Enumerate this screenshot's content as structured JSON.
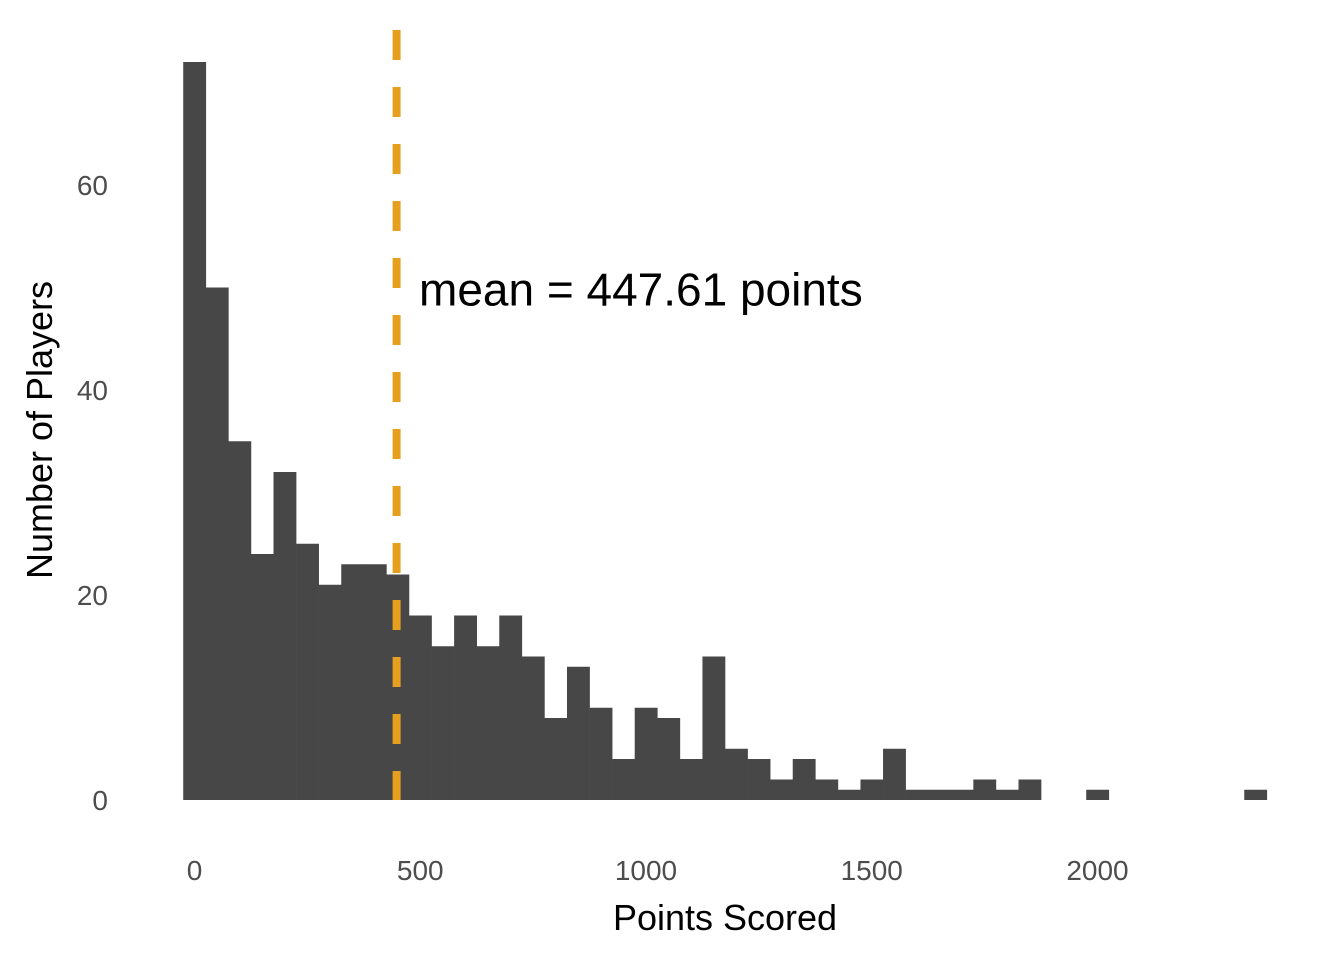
{
  "chart_data": {
    "type": "bar",
    "subtype": "histogram",
    "title": "",
    "xlabel": "Points Scored",
    "ylabel": "Number of Players",
    "bin_width": 50,
    "x": [
      0,
      50,
      100,
      150,
      200,
      250,
      300,
      350,
      400,
      450,
      500,
      550,
      600,
      650,
      700,
      750,
      800,
      850,
      900,
      950,
      1000,
      1050,
      1100,
      1150,
      1200,
      1250,
      1300,
      1350,
      1400,
      1450,
      1500,
      1550,
      1600,
      1650,
      1700,
      1750,
      1800,
      1850,
      1900,
      1950,
      2000,
      2050,
      2100,
      2150,
      2200,
      2250,
      2300,
      2350
    ],
    "values": [
      72,
      50,
      35,
      24,
      32,
      25,
      21,
      23,
      23,
      22,
      18,
      15,
      18,
      15,
      18,
      14,
      8,
      13,
      9,
      4,
      9,
      8,
      4,
      14,
      5,
      4,
      2,
      4,
      2,
      1,
      2,
      5,
      1,
      1,
      1,
      2,
      1,
      2,
      0,
      0,
      1,
      0,
      0,
      0,
      0,
      0,
      0,
      1
    ],
    "xticks": [
      0,
      500,
      1000,
      1500,
      2000
    ],
    "xtick_labels": [
      "0",
      "500",
      "1000",
      "1500",
      "2000"
    ],
    "yticks": [
      0,
      20,
      40,
      60
    ],
    "ytick_labels": [
      "0",
      "20",
      "40",
      "60"
    ],
    "xlim": [
      -40,
      2400
    ],
    "ylim": [
      0,
      75
    ],
    "grid": false,
    "legend": null,
    "bar_color": "#474747",
    "annotations": [
      {
        "type": "vline",
        "x": 447.61,
        "style": "dashed",
        "color": "#E69F1E"
      },
      {
        "type": "text",
        "text": "mean = 447.61 points",
        "x": 500,
        "y": 50
      }
    ]
  },
  "labels": {
    "xlabel": "Points Scored",
    "ylabel": "Number of Players",
    "annotation": "mean = 447.61 points"
  }
}
